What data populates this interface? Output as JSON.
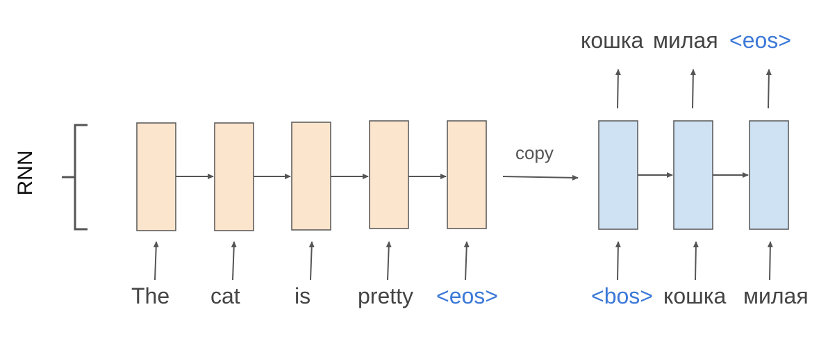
{
  "diagram": {
    "side_label": "RNN",
    "copy_label": "copy",
    "encoder_inputs": [
      "The",
      "cat",
      "is",
      "pretty",
      "<eos>"
    ],
    "decoder_inputs": [
      "<bos>",
      "кошка",
      "милая"
    ],
    "decoder_outputs": [
      "кошка",
      "милая",
      "<eos>"
    ],
    "special_tokens": [
      "<eos>",
      "<bos>"
    ]
  },
  "colors": {
    "encoder_fill": "#fce5cd",
    "decoder_fill": "#cfe2f3",
    "box_stroke": "#555555",
    "arrow": "#555555",
    "text": "#444444",
    "special_token": "#3c78d8"
  }
}
